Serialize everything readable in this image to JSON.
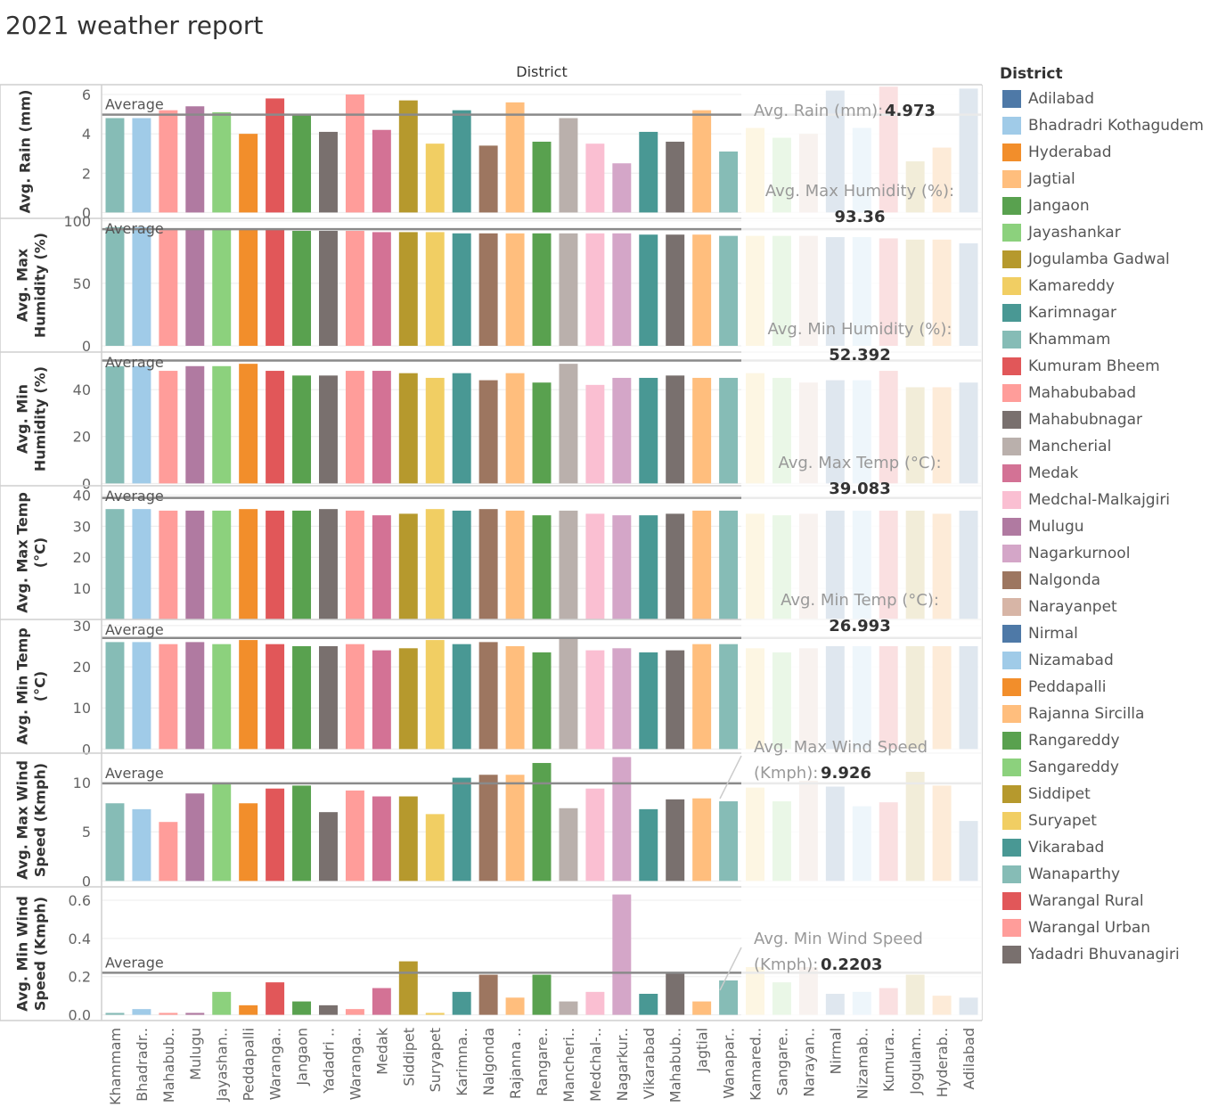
{
  "title": "2021 weather report",
  "colors": {
    "Adilabad": "#4e79a7",
    "Bhadradri Kothagudem": "#a0cbe8",
    "Hyderabad": "#f28e2b",
    "Jagtial": "#ffbe7d",
    "Jangaon": "#59a14f",
    "Jayashankar": "#8cd17d",
    "Jogulamba Gadwal": "#b6992d",
    "Kamareddy": "#f1ce63",
    "Karimnagar": "#499894",
    "Khammam": "#86bcb6",
    "Kumuram Bheem": "#e15759",
    "Mahabubabad": "#ff9d9a",
    "Mahabubnagar": "#79706e",
    "Mancherial": "#bab0ac",
    "Medak": "#d37295",
    "Medchal-Malkajgiri": "#fabfd2",
    "Mulugu": "#b07aa1",
    "Nagarkurnool": "#d4a6c8",
    "Nalgonda": "#9d7660",
    "Narayanpet": "#d7b5a6",
    "Nirmal": "#4e79a7",
    "Nizamabad": "#a0cbe8",
    "Peddapalli": "#f28e2b",
    "Rajanna Sircilla": "#ffbe7d",
    "Rangareddy": "#59a14f",
    "Sangareddy": "#8cd17d",
    "Siddipet": "#b6992d",
    "Suryapet": "#f1ce63",
    "Vikarabad": "#499894",
    "Wanaparthy": "#86bcb6",
    "Warangal Rural": "#e15759",
    "Warangal Urban": "#ff9d9a",
    "Yadadri Bhuvanagiri": "#79706e"
  },
  "legend": {
    "title": "District",
    "items": [
      "Adilabad",
      "Bhadradri Kothagudem",
      "Hyderabad",
      "Jagtial",
      "Jangaon",
      "Jayashankar",
      "Jogulamba Gadwal",
      "Kamareddy",
      "Karimnagar",
      "Khammam",
      "Kumuram Bheem",
      "Mahabubabad",
      "Mahabubnagar",
      "Mancherial",
      "Medak",
      "Medchal-Malkajgiri",
      "Mulugu",
      "Nagarkurnool",
      "Nalgonda",
      "Narayanpet",
      "Nirmal",
      "Nizamabad",
      "Peddapalli",
      "Rajanna Sircilla",
      "Rangareddy",
      "Sangareddy",
      "Siddipet",
      "Suryapet",
      "Vikarabad",
      "Wanaparthy",
      "Warangal Rural",
      "Warangal Urban",
      "Yadadri Bhuvanagiri"
    ]
  },
  "chart_data": {
    "type": "bar",
    "column_header": "District",
    "categories": [
      "Khammam",
      "Bhadradri Kothagudem",
      "Mahabubabad",
      "Mulugu",
      "Jayashankar",
      "Peddapalli",
      "Warangal Rural",
      "Jangaon",
      "Yadadri Bhuvanagiri",
      "Warangal Urban",
      "Medak",
      "Siddipet",
      "Suryapet",
      "Karimnagar",
      "Nalgonda",
      "Rajanna Sircilla",
      "Rangareddy",
      "Mancherial",
      "Medchal-Malkajgiri",
      "Nagarkurnool",
      "Vikarabad",
      "Mahabubnagar",
      "Jagtial",
      "Wanaparthy",
      "Kamareddy",
      "Sangareddy",
      "Narayanpet",
      "Nirmal",
      "Nizamabad",
      "Kumuram Bheem",
      "Jogulamba Gadwal",
      "Hyderabad",
      "Adilabad"
    ],
    "tick_labels": [
      "Khammam",
      "Bhadradr..",
      "Mahabub..",
      "Mulugu",
      "Jayashan..",
      "Peddapalli",
      "Waranga..",
      "Jangaon",
      "Yadadri ..",
      "Waranga..",
      "Medak",
      "Siddipet",
      "Suryapet",
      "Karimna..",
      "Nalgonda",
      "Rajanna ..",
      "Rangare..",
      "Mancheri..",
      "Medchal-..",
      "Nagarkur..",
      "Vikarabad",
      "Mahabub..",
      "Jagtial",
      "Wanapar..",
      "Kamared..",
      "Sangare..",
      "Narayan..",
      "Nirmal",
      "Nizamab..",
      "Kumura..",
      "Jogulam..",
      "Hyderab..",
      "Adilabad"
    ],
    "reference_line_label": "Average",
    "panels": [
      {
        "ylabel": [
          "Avg. Rain (mm)"
        ],
        "ylim": [
          -0.3,
          6.5
        ],
        "ticks": [
          0,
          2,
          4,
          6
        ],
        "tick_labels": [
          "0",
          "2",
          "4",
          "6"
        ],
        "average": 4.973,
        "values": [
          4.8,
          4.8,
          5.2,
          5.4,
          5.1,
          4.0,
          5.8,
          5.0,
          4.1,
          6.0,
          4.2,
          5.7,
          3.5,
          5.2,
          3.4,
          5.6,
          3.6,
          4.8,
          3.5,
          2.5,
          4.1,
          3.6,
          5.2,
          3.1,
          4.3,
          3.8,
          4.0,
          6.2,
          4.3,
          6.4,
          2.6,
          3.3,
          6.3
        ]
      },
      {
        "ylabel": [
          "Avg. Max",
          "Humidity (%)"
        ],
        "ylim": [
          -5,
          102
        ],
        "ticks": [
          0,
          50,
          100
        ],
        "tick_labels": [
          "0",
          "50",
          "100"
        ],
        "average": 93.36,
        "values": [
          95,
          95,
          94,
          94,
          94,
          93,
          93,
          92,
          92,
          92,
          91,
          91,
          91,
          90,
          90,
          90,
          90,
          90,
          90,
          90,
          89,
          89,
          89,
          88,
          88,
          88,
          88,
          87,
          87,
          86,
          85,
          85,
          82
        ]
      },
      {
        "ylabel": [
          "Avg. Min",
          "Humidity (%)"
        ],
        "ylim": [
          -1,
          56
        ],
        "ticks": [
          0,
          20,
          40
        ],
        "tick_labels": [
          "0",
          "20",
          "40"
        ],
        "average": 52.392,
        "values": [
          50,
          50,
          48,
          50,
          50,
          51,
          48,
          46,
          46,
          48,
          48,
          47,
          45,
          47,
          44,
          47,
          43,
          51,
          42,
          45,
          45,
          46,
          45,
          45,
          47,
          45,
          43,
          44,
          44,
          48,
          41,
          41,
          43
        ]
      },
      {
        "ylabel": [
          "Avg. Max Temp",
          "(°C)"
        ],
        "ylim": [
          0,
          43
        ],
        "ticks": [
          10,
          20,
          30,
          40
        ],
        "tick_labels": [
          "10",
          "20",
          "30",
          "40"
        ],
        "average": 39.083,
        "values": [
          35.5,
          35.5,
          35,
          35,
          35,
          35.5,
          35,
          35,
          35.5,
          35,
          33.5,
          34,
          35.5,
          35,
          35.5,
          35,
          33.5,
          35,
          34,
          33.5,
          33.5,
          34,
          35,
          35,
          34,
          33.5,
          34,
          35,
          35,
          35,
          35,
          34,
          35
        ]
      },
      {
        "ylabel": [
          "Avg. Min Temp",
          "(°C)"
        ],
        "ylim": [
          -1,
          31.5
        ],
        "ticks": [
          0,
          10,
          20,
          30
        ],
        "tick_labels": [
          "0",
          "10",
          "20",
          "30"
        ],
        "average": 26.993,
        "values": [
          26,
          26,
          25.5,
          26,
          25.5,
          26.5,
          25.5,
          25,
          25,
          25.5,
          24,
          24.5,
          26.5,
          25.5,
          26,
          25,
          23.5,
          27,
          24,
          24.5,
          23.5,
          24,
          25.5,
          25.5,
          24.5,
          23.5,
          24.5,
          25,
          25,
          25,
          25,
          25,
          25
        ]
      },
      {
        "ylabel": [
          "Avg. Max Wind",
          "Speed (Kmph)"
        ],
        "ylim": [
          -0.6,
          13
        ],
        "ticks": [
          0,
          5,
          10
        ],
        "tick_labels": [
          "0",
          "5",
          "10"
        ],
        "average": 9.926,
        "values": [
          7.9,
          7.3,
          6.0,
          8.9,
          9.9,
          7.9,
          9.4,
          9.7,
          7.0,
          9.2,
          8.6,
          8.6,
          6.8,
          10.5,
          10.8,
          10.8,
          12.0,
          7.4,
          9.4,
          12.6,
          7.3,
          8.3,
          8.4,
          8.1,
          9.5,
          8.1,
          10.2,
          9.6,
          7.6,
          8.0,
          11.1,
          9.7,
          6.1
        ]
      },
      {
        "ylabel": [
          "Avg. Min Wind",
          "Speed (Kmph)"
        ],
        "ylim": [
          -0.03,
          0.67
        ],
        "ticks": [
          0,
          0.2,
          0.4,
          0.6
        ],
        "tick_labels": [
          "0.0",
          "0.2",
          "0.4",
          "0.6"
        ],
        "average": 0.2203,
        "values": [
          0.01,
          0.03,
          0.01,
          0.01,
          0.12,
          0.05,
          0.17,
          0.07,
          0.05,
          0.03,
          0.14,
          0.28,
          0.01,
          0.12,
          0.21,
          0.09,
          0.21,
          0.07,
          0.12,
          0.63,
          0.11,
          0.22,
          0.07,
          0.18,
          0.25,
          0.17,
          0.25,
          0.11,
          0.12,
          0.14,
          0.21,
          0.1,
          0.09
        ]
      }
    ],
    "tooltips": [
      {
        "label": "Avg. Rain (mm):",
        "value": "4.973"
      },
      {
        "label": "Avg. Max Humidity (%):",
        "value": "93.36"
      },
      {
        "label": "Avg. Min Humidity (%):",
        "value": "52.392"
      },
      {
        "label": "Avg. Max Temp (°C):",
        "value": "39.083"
      },
      {
        "label": "Avg. Min Temp (°C):",
        "value": "26.993"
      },
      {
        "label": "Avg. Max Wind Speed",
        "label2": "(Kmph):",
        "value": "9.926"
      },
      {
        "label": "Avg. Min Wind Speed",
        "label2": "(Kmph):",
        "value": "0.2203"
      }
    ]
  }
}
